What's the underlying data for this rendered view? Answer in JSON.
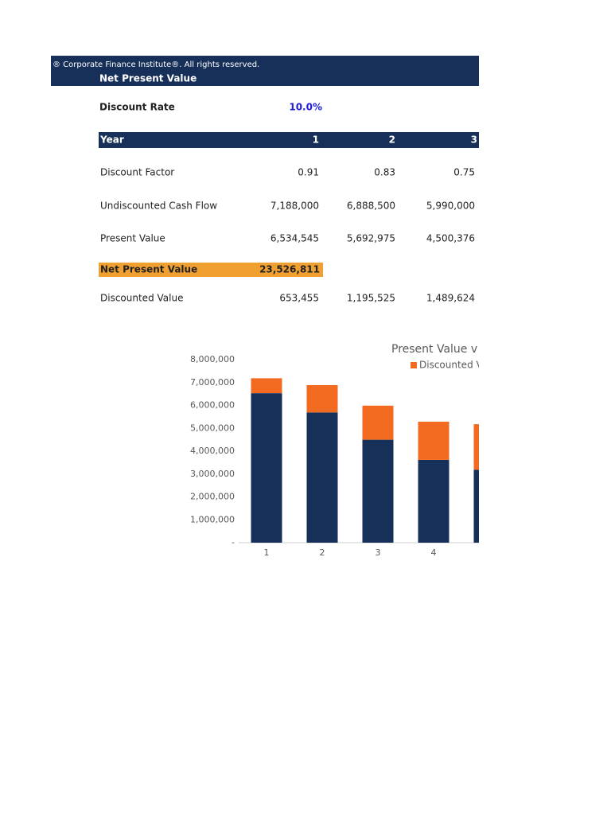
{
  "header": {
    "copyright": "® Corporate Finance Institute®. All rights reserved.",
    "title": "Net Present Value"
  },
  "discount_rate": {
    "label": "Discount Rate",
    "value": "10.0%"
  },
  "table": {
    "columns": [
      "Year",
      "1",
      "2",
      "3"
    ],
    "rows": [
      [
        "Discount Factor",
        "0.91",
        "0.83",
        "0.75"
      ],
      [
        "Undiscounted Cash Flow",
        "7,188,000",
        "6,888,500",
        "5,990,000"
      ],
      [
        "Present Value",
        "6,534,545",
        "5,692,975",
        "4,500,376"
      ]
    ]
  },
  "npv": {
    "label": "Net Present Value",
    "value": "23,526,811"
  },
  "discounted_row": [
    "Discounted Value",
    "653,455",
    "1,195,525",
    "1,489,624"
  ],
  "chart_data": {
    "type": "stacked_bar",
    "title": "Present Value v",
    "categories": [
      "1",
      "2",
      "3",
      "4",
      null
    ],
    "series": [
      {
        "color": "#17305a",
        "values": [
          6534545,
          5692975,
          4500376,
          3620000,
          3190000
        ]
      },
      {
        "name": "Discounted V",
        "color": "#f26b21",
        "values": [
          653455,
          1195525,
          1489624,
          1670000,
          1990000
        ]
      }
    ],
    "ylim": [
      0,
      8000000
    ],
    "yticks": [
      {
        "value": 0,
        "label": "-"
      },
      {
        "value": 1000000,
        "label": "1,000,000"
      },
      {
        "value": 2000000,
        "label": "2,000,000"
      },
      {
        "value": 3000000,
        "label": "3,000,000"
      },
      {
        "value": 4000000,
        "label": "4,000,000"
      },
      {
        "value": 5000000,
        "label": "5,000,000"
      },
      {
        "value": 6000000,
        "label": "6,000,000"
      },
      {
        "value": 7000000,
        "label": "7,000,000"
      },
      {
        "value": 8000000,
        "label": "8,000,000"
      }
    ]
  }
}
